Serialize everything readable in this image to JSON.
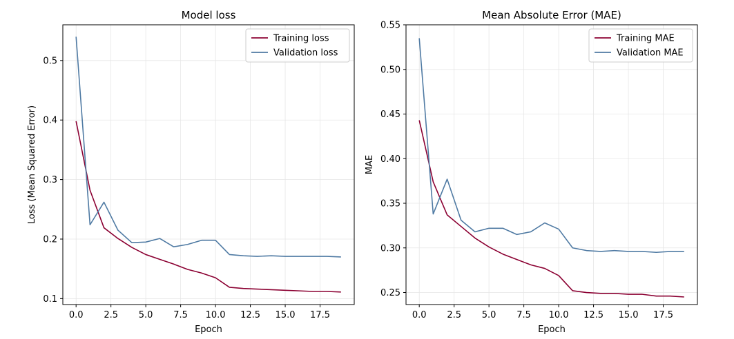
{
  "colors": {
    "training": "#8b0032",
    "validation": "#4f7aa3"
  },
  "chart_data": [
    {
      "type": "line",
      "title": "Model loss",
      "xlabel": "Epoch",
      "ylabel": "Loss (Mean Squared Error)",
      "xlim": [
        -0.95,
        19.95
      ],
      "ylim": [
        0.09,
        0.56
      ],
      "xticks": [
        0.0,
        2.5,
        5.0,
        7.5,
        10.0,
        12.5,
        15.0,
        17.5
      ],
      "xtick_labels": [
        "0.0",
        "2.5",
        "5.0",
        "7.5",
        "10.0",
        "12.5",
        "15.0",
        "17.5"
      ],
      "yticks": [
        0.1,
        0.2,
        0.3,
        0.4,
        0.5
      ],
      "ytick_labels": [
        "0.1",
        "0.2",
        "0.3",
        "0.4",
        "0.5"
      ],
      "grid": true,
      "legend": "upper-right",
      "x": [
        0,
        1,
        2,
        3,
        4,
        5,
        6,
        7,
        8,
        9,
        10,
        11,
        12,
        13,
        14,
        15,
        16,
        17,
        18,
        19
      ],
      "series": [
        {
          "name": "Training loss",
          "color": "#8b0032",
          "values": [
            0.398,
            0.282,
            0.219,
            0.201,
            0.186,
            0.174,
            0.166,
            0.158,
            0.149,
            0.143,
            0.135,
            0.119,
            0.117,
            0.116,
            0.115,
            0.114,
            0.113,
            0.112,
            0.112,
            0.111
          ]
        },
        {
          "name": "Validation loss",
          "color": "#4f7aa3",
          "values": [
            0.54,
            0.224,
            0.262,
            0.215,
            0.194,
            0.195,
            0.201,
            0.187,
            0.191,
            0.198,
            0.198,
            0.174,
            0.172,
            0.171,
            0.172,
            0.171,
            0.171,
            0.171,
            0.171,
            0.17
          ]
        }
      ]
    },
    {
      "type": "line",
      "title": "Mean Absolute Error (MAE)",
      "xlabel": "Epoch",
      "ylabel": "MAE",
      "xlim": [
        -0.95,
        19.95
      ],
      "ylim": [
        0.2365,
        0.55
      ],
      "xticks": [
        0.0,
        2.5,
        5.0,
        7.5,
        10.0,
        12.5,
        15.0,
        17.5
      ],
      "xtick_labels": [
        "0.0",
        "2.5",
        "5.0",
        "7.5",
        "10.0",
        "12.5",
        "15.0",
        "17.5"
      ],
      "yticks": [
        0.25,
        0.3,
        0.35,
        0.4,
        0.45,
        0.5,
        0.55
      ],
      "ytick_labels": [
        "0.25",
        "0.30",
        "0.35",
        "0.40",
        "0.45",
        "0.50",
        "0.55"
      ],
      "grid": true,
      "legend": "upper-right",
      "x": [
        0,
        1,
        2,
        3,
        4,
        5,
        6,
        7,
        8,
        9,
        10,
        11,
        12,
        13,
        14,
        15,
        16,
        17,
        18,
        19
      ],
      "series": [
        {
          "name": "Training MAE",
          "color": "#8b0032",
          "values": [
            0.443,
            0.374,
            0.337,
            0.324,
            0.311,
            0.301,
            0.293,
            0.287,
            0.281,
            0.277,
            0.269,
            0.252,
            0.25,
            0.249,
            0.249,
            0.248,
            0.248,
            0.246,
            0.246,
            0.245
          ]
        },
        {
          "name": "Validation MAE",
          "color": "#4f7aa3",
          "values": [
            0.535,
            0.338,
            0.377,
            0.331,
            0.318,
            0.322,
            0.322,
            0.315,
            0.318,
            0.328,
            0.321,
            0.3,
            0.297,
            0.296,
            0.297,
            0.296,
            0.296,
            0.295,
            0.296,
            0.296
          ]
        }
      ]
    }
  ]
}
